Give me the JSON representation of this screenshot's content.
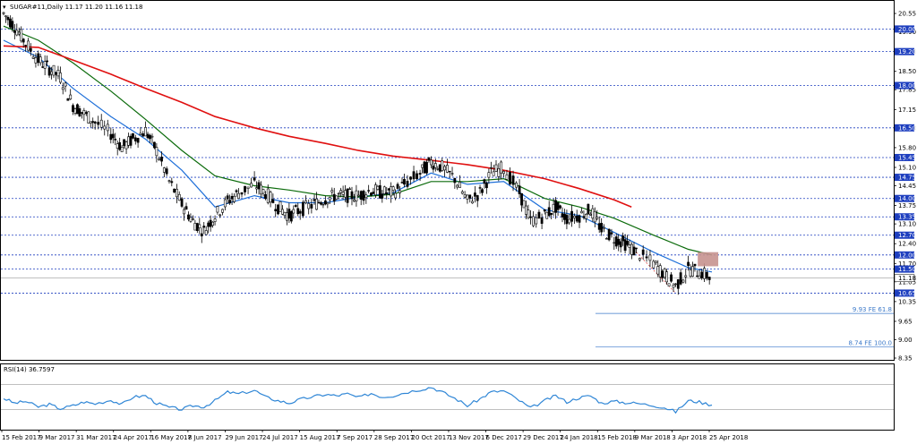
{
  "header": {
    "symbol_line": "SUGAR#11,Daily  11.17 11.20 11.16 11.18"
  },
  "rsi_panel": {
    "label": "RSI(14) 36.7597"
  },
  "colors": {
    "ma_fast": "#1e6fd9",
    "ma_mid": "#0b6b0b",
    "ma_slow": "#e01010",
    "level_line": "#1e3fbf",
    "zone_fill": "#c7928f",
    "rsi_line": "#2f86d6"
  },
  "chart_data": [
    {
      "type": "candlestick",
      "title": "",
      "y_tick_labels": [
        "20.55",
        "19.90",
        "19.20",
        "18.50",
        "17.85",
        "17.15",
        "16.50",
        "15.80",
        "15.10",
        "14.45",
        "13.75",
        "13.10",
        "12.40",
        "11.70",
        "11.05",
        "10.35",
        "9.65",
        "9.00",
        "8.35"
      ],
      "ylim": [
        8.35,
        20.9
      ],
      "x_tick_labels": [
        "15 Feb 2017",
        "9 Mar 2017",
        "31 Mar 2017",
        "24 Apr 2017",
        "16 May 2017",
        "8 Jun 2017",
        "29 Jun 2017",
        "24 Jul 2017",
        "15 Aug 2017",
        "7 Sep 2017",
        "28 Sep 2017",
        "20 Oct 2017",
        "13 Nov 2017",
        "6 Dec 2017",
        "29 Dec 2017",
        "24 Jan 2018",
        "15 Feb 2018",
        "9 Mar 2018",
        "3 Apr 2018",
        "25 Apr 2018"
      ],
      "x_range": [
        "2017-02-15",
        "2018-05-10"
      ],
      "grid": false,
      "close_series": [
        [
          "2017-02-15",
          20.55
        ],
        [
          "2017-02-22",
          20.1
        ],
        [
          "2017-03-01",
          19.5
        ],
        [
          "2017-03-09",
          18.9
        ],
        [
          "2017-03-16",
          18.6
        ],
        [
          "2017-03-23",
          18.3
        ],
        [
          "2017-03-31",
          17.3
        ],
        [
          "2017-04-07",
          17.0
        ],
        [
          "2017-04-14",
          16.7
        ],
        [
          "2017-04-24",
          16.3
        ],
        [
          "2017-05-01",
          15.8
        ],
        [
          "2017-05-08",
          16.1
        ],
        [
          "2017-05-16",
          16.4
        ],
        [
          "2017-05-23",
          15.7
        ],
        [
          "2017-05-31",
          14.6
        ],
        [
          "2017-06-08",
          13.8
        ],
        [
          "2017-06-15",
          13.2
        ],
        [
          "2017-06-22",
          12.85
        ],
        [
          "2017-06-29",
          13.4
        ],
        [
          "2017-07-07",
          13.9
        ],
        [
          "2017-07-14",
          14.2
        ],
        [
          "2017-07-24",
          14.5
        ],
        [
          "2017-07-31",
          14.2
        ],
        [
          "2017-08-08",
          13.7
        ],
        [
          "2017-08-15",
          13.4
        ],
        [
          "2017-08-22",
          13.6
        ],
        [
          "2017-08-31",
          13.8
        ],
        [
          "2017-09-07",
          14.0
        ],
        [
          "2017-09-14",
          14.1
        ],
        [
          "2017-09-21",
          14.1
        ],
        [
          "2017-09-28",
          14.1
        ],
        [
          "2017-10-06",
          14.3
        ],
        [
          "2017-10-13",
          14.2
        ],
        [
          "2017-10-20",
          14.2
        ],
        [
          "2017-10-27",
          14.5
        ],
        [
          "2017-11-06",
          14.9
        ],
        [
          "2017-11-13",
          15.3
        ],
        [
          "2017-11-20",
          15.1
        ],
        [
          "2017-11-28",
          14.7
        ],
        [
          "2017-12-06",
          13.9
        ],
        [
          "2017-12-14",
          14.2
        ],
        [
          "2017-12-21",
          14.9
        ],
        [
          "2017-12-29",
          15.1
        ],
        [
          "2018-01-08",
          14.2
        ],
        [
          "2018-01-15",
          13.2
        ],
        [
          "2018-01-24",
          13.4
        ],
        [
          "2018-01-31",
          13.7
        ],
        [
          "2018-02-07",
          13.3
        ],
        [
          "2018-02-15",
          13.4
        ],
        [
          "2018-02-22",
          13.6
        ],
        [
          "2018-03-01",
          12.9
        ],
        [
          "2018-03-09",
          12.6
        ],
        [
          "2018-03-16",
          12.4
        ],
        [
          "2018-03-23",
          12.1
        ],
        [
          "2018-04-03",
          11.7
        ],
        [
          "2018-04-10",
          11.3
        ],
        [
          "2018-04-17",
          10.9
        ],
        [
          "2018-04-25",
          11.5
        ],
        [
          "2018-05-02",
          11.4
        ],
        [
          "2018-05-10",
          11.18
        ]
      ],
      "moving_averages": [
        {
          "color_key": "ma_fast",
          "values": [
            [
              "2017-02-15",
              19.6
            ],
            [
              "2017-03-09",
              19.0
            ],
            [
              "2017-03-31",
              17.9
            ],
            [
              "2017-04-24",
              16.9
            ],
            [
              "2017-05-16",
              16.1
            ],
            [
              "2017-06-08",
              15.0
            ],
            [
              "2017-06-29",
              13.7
            ],
            [
              "2017-07-24",
              14.1
            ],
            [
              "2017-08-15",
              13.85
            ],
            [
              "2017-09-07",
              13.85
            ],
            [
              "2017-09-28",
              14.05
            ],
            [
              "2017-10-20",
              14.2
            ],
            [
              "2017-11-13",
              14.9
            ],
            [
              "2017-12-06",
              14.5
            ],
            [
              "2017-12-29",
              14.6
            ],
            [
              "2018-01-24",
              13.6
            ],
            [
              "2018-02-15",
              13.4
            ],
            [
              "2018-03-09",
              12.8
            ],
            [
              "2018-04-03",
              12.1
            ],
            [
              "2018-04-25",
              11.55
            ],
            [
              "2018-05-10",
              11.4
            ]
          ]
        },
        {
          "color_key": "ma_mid",
          "values": [
            [
              "2017-02-15",
              20.1
            ],
            [
              "2017-03-09",
              19.6
            ],
            [
              "2017-03-31",
              18.8
            ],
            [
              "2017-04-24",
              17.8
            ],
            [
              "2017-05-16",
              16.8
            ],
            [
              "2017-06-08",
              15.7
            ],
            [
              "2017-06-29",
              14.8
            ],
            [
              "2017-07-24",
              14.45
            ],
            [
              "2017-08-15",
              14.3
            ],
            [
              "2017-09-07",
              14.1
            ],
            [
              "2017-09-28",
              14.05
            ],
            [
              "2017-10-20",
              14.15
            ],
            [
              "2017-11-13",
              14.6
            ],
            [
              "2017-12-06",
              14.6
            ],
            [
              "2017-12-29",
              14.7
            ],
            [
              "2018-01-24",
              14.0
            ],
            [
              "2018-02-15",
              13.7
            ],
            [
              "2018-03-09",
              13.3
            ],
            [
              "2018-04-03",
              12.7
            ],
            [
              "2018-04-25",
              12.2
            ],
            [
              "2018-05-10",
              12.0
            ]
          ]
        },
        {
          "color_key": "ma_slow",
          "values": [
            [
              "2017-02-15",
              19.4
            ],
            [
              "2017-03-09",
              19.35
            ],
            [
              "2017-03-31",
              18.9
            ],
            [
              "2017-04-24",
              18.4
            ],
            [
              "2017-05-16",
              17.9
            ],
            [
              "2017-06-08",
              17.4
            ],
            [
              "2017-06-29",
              16.9
            ],
            [
              "2017-07-24",
              16.5
            ],
            [
              "2017-08-15",
              16.2
            ],
            [
              "2017-09-07",
              15.95
            ],
            [
              "2017-09-28",
              15.7
            ],
            [
              "2017-10-20",
              15.5
            ],
            [
              "2017-11-13",
              15.35
            ],
            [
              "2017-12-06",
              15.2
            ],
            [
              "2017-12-29",
              15.0
            ],
            [
              "2018-01-24",
              14.7
            ],
            [
              "2018-02-15",
              14.35
            ],
            [
              "2018-03-09",
              13.95
            ],
            [
              "2018-03-20",
              13.7
            ]
          ]
        }
      ],
      "horizontal_levels": [
        {
          "value": 20.0,
          "label": "20.00"
        },
        {
          "value": 19.2,
          "label": "19.20"
        },
        {
          "value": 18.0,
          "label": "18.00"
        },
        {
          "value": 16.5,
          "label": "16.50"
        },
        {
          "value": 15.45,
          "label": "15.45"
        },
        {
          "value": 14.75,
          "label": "14.75"
        },
        {
          "value": 14.0,
          "label": "14.00"
        },
        {
          "value": 13.35,
          "label": "13.35"
        },
        {
          "value": 12.7,
          "label": "12.70"
        },
        {
          "value": 12.0,
          "label": "12.00"
        },
        {
          "value": 11.5,
          "label": "11.50"
        },
        {
          "value": 10.65,
          "label": "10.65"
        }
      ],
      "current_price_label": "11.18",
      "current_price": 11.18,
      "fibo_levels": [
        {
          "value": 9.93,
          "label": "9.93 FE 61.8"
        },
        {
          "value": 8.74,
          "label": "8.74 FE 100.0"
        }
      ],
      "zone": {
        "x_from": "2018-05-01",
        "x_to": "2018-05-14",
        "y_from": 11.6,
        "y_to": 12.1
      },
      "dashed_projection": [
        [
          "2018-03-23",
          12.1
        ],
        [
          "2018-04-17",
          10.65
        ]
      ]
    },
    {
      "type": "line",
      "title": "",
      "name": "RSI(14)",
      "ylim": [
        0,
        100
      ],
      "reference_levels": [
        70,
        30
      ],
      "values": [
        [
          "2017-02-15",
          48
        ],
        [
          "2017-02-22",
          40
        ],
        [
          "2017-03-01",
          43
        ],
        [
          "2017-03-09",
          34
        ],
        [
          "2017-03-16",
          38
        ],
        [
          "2017-03-23",
          31
        ],
        [
          "2017-03-31",
          36
        ],
        [
          "2017-04-07",
          42
        ],
        [
          "2017-04-14",
          39
        ],
        [
          "2017-04-24",
          45
        ],
        [
          "2017-05-01",
          38
        ],
        [
          "2017-05-08",
          50
        ],
        [
          "2017-05-16",
          52
        ],
        [
          "2017-05-23",
          40
        ],
        [
          "2017-05-31",
          33
        ],
        [
          "2017-06-08",
          30
        ],
        [
          "2017-06-15",
          36
        ],
        [
          "2017-06-22",
          34
        ],
        [
          "2017-06-29",
          44
        ],
        [
          "2017-07-07",
          58
        ],
        [
          "2017-07-14",
          55
        ],
        [
          "2017-07-24",
          61
        ],
        [
          "2017-07-31",
          50
        ],
        [
          "2017-08-08",
          44
        ],
        [
          "2017-08-15",
          40
        ],
        [
          "2017-08-22",
          46
        ],
        [
          "2017-08-31",
          51
        ],
        [
          "2017-09-07",
          54
        ],
        [
          "2017-09-14",
          52
        ],
        [
          "2017-09-21",
          55
        ],
        [
          "2017-09-28",
          49
        ],
        [
          "2017-10-06",
          56
        ],
        [
          "2017-10-13",
          50
        ],
        [
          "2017-10-20",
          52
        ],
        [
          "2017-10-27",
          57
        ],
        [
          "2017-11-06",
          62
        ],
        [
          "2017-11-13",
          66
        ],
        [
          "2017-11-20",
          58
        ],
        [
          "2017-11-28",
          48
        ],
        [
          "2017-12-06",
          36
        ],
        [
          "2017-12-14",
          47
        ],
        [
          "2017-12-21",
          58
        ],
        [
          "2017-12-29",
          60
        ],
        [
          "2018-01-08",
          44
        ],
        [
          "2018-01-15",
          32
        ],
        [
          "2018-01-24",
          44
        ],
        [
          "2018-01-31",
          52
        ],
        [
          "2018-02-07",
          42
        ],
        [
          "2018-02-15",
          49
        ],
        [
          "2018-02-22",
          52
        ],
        [
          "2018-03-01",
          40
        ],
        [
          "2018-03-09",
          43
        ],
        [
          "2018-03-16",
          41
        ],
        [
          "2018-03-23",
          40
        ],
        [
          "2018-04-03",
          36
        ],
        [
          "2018-04-10",
          33
        ],
        [
          "2018-04-17",
          26
        ],
        [
          "2018-04-25",
          44
        ],
        [
          "2018-05-02",
          42
        ],
        [
          "2018-05-10",
          37
        ]
      ]
    }
  ]
}
